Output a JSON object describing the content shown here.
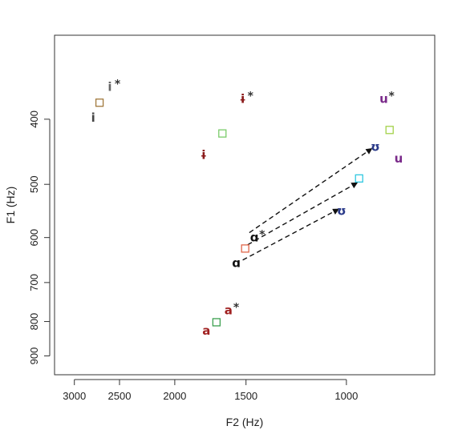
{
  "chart_data": {
    "type": "scatter",
    "title": "",
    "xlabel": "F2 (Hz)",
    "ylabel": "F1 (Hz)",
    "x_reversed": true,
    "y_reversed": true,
    "x_scale": "log",
    "y_scale": "log",
    "xlim": [
      3250,
      700
    ],
    "ylim": [
      300,
      960
    ],
    "x_ticks": [
      3000,
      2500,
      2000,
      1500,
      1000
    ],
    "x_tick_labels": [
      "3000",
      "2500",
      "2000",
      "1500",
      "1000"
    ],
    "y_ticks": [
      400,
      500,
      600,
      700,
      800,
      900
    ],
    "y_tick_labels": [
      "400",
      "500",
      "600",
      "700",
      "800",
      "900"
    ],
    "grid": false,
    "labels": [
      {
        "text": "i",
        "x": 2780,
        "y": 398,
        "color": "#444444",
        "star": false
      },
      {
        "text": "i",
        "x": 2600,
        "y": 358,
        "color": "#666666",
        "star": true
      },
      {
        "text": "ɨ",
        "x": 1780,
        "y": 452,
        "color": "#8b1a1a",
        "star": false
      },
      {
        "text": "ɨ",
        "x": 1520,
        "y": 373,
        "color": "#8b1a1a",
        "star": true
      },
      {
        "text": "u",
        "x": 810,
        "y": 458,
        "color": "#7a2a8a",
        "star": false
      },
      {
        "text": "u",
        "x": 860,
        "y": 373,
        "color": "#7a2a8a",
        "star": true
      },
      {
        "text": "ʊ",
        "x": 890,
        "y": 440,
        "color": "#2a3a8a",
        "star": false
      },
      {
        "text": "ʊ",
        "x": 1020,
        "y": 548,
        "color": "#2a3a8a",
        "star": false
      },
      {
        "text": "ɑ",
        "x": 1560,
        "y": 655,
        "color": "#111111",
        "star": false
      },
      {
        "text": "ɑ",
        "x": 1450,
        "y": 600,
        "color": "#111111",
        "star": true
      },
      {
        "text": "a",
        "x": 1760,
        "y": 825,
        "color": "#a02020",
        "star": false
      },
      {
        "text": "a",
        "x": 1610,
        "y": 770,
        "color": "#a02020",
        "star": true
      }
    ],
    "markers": [
      {
        "x": 2710,
        "y": 378,
        "color": "#a0783c"
      },
      {
        "x": 1650,
        "y": 420,
        "color": "#7acc6a"
      },
      {
        "x": 1505,
        "y": 623,
        "color": "#e0664a"
      },
      {
        "x": 950,
        "y": 490,
        "color": "#30c8e0"
      },
      {
        "x": 840,
        "y": 415,
        "color": "#a4d24a"
      },
      {
        "x": 1690,
        "y": 802,
        "color": "#3ca050"
      }
    ],
    "arrows": [
      {
        "from": [
          1480,
          590
        ],
        "to": [
          905,
          443
        ]
      },
      {
        "from": [
          1490,
          615
        ],
        "to": [
          960,
          498
        ]
      },
      {
        "from": [
          1520,
          648
        ],
        "to": [
          1035,
          545
        ]
      }
    ]
  }
}
